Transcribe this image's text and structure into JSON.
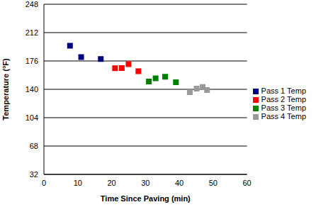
{
  "chart_data": {
    "type": "scatter",
    "x_label": "Time Since Paving (min)",
    "y_label": "Temperature (°F)",
    "xlim": [
      0,
      60
    ],
    "xticks": [
      0,
      10,
      20,
      30,
      40,
      50,
      60
    ],
    "ylim": [
      32,
      248
    ],
    "yticks": [
      32,
      68,
      104,
      140,
      176,
      212,
      248
    ],
    "grid": true,
    "legend": "right",
    "marker": "square",
    "series": [
      {
        "name": "Pass 1 Temp",
        "color": "#000080",
        "x": [
          7.7,
          11,
          16.8
        ],
        "values": [
          195.3,
          181,
          178.4
        ]
      },
      {
        "name": "Pass 2 Temp",
        "color": "#ff0000",
        "x": [
          21,
          23,
          25,
          27.9
        ],
        "values": [
          166.8,
          167,
          172,
          163
        ]
      },
      {
        "name": "Pass 3 Temp",
        "color": "#008000",
        "x": [
          31,
          33,
          35.8,
          39
        ],
        "values": [
          150,
          154,
          156,
          149
        ]
      },
      {
        "name": "Pass 4 Temp",
        "color": "#999999",
        "x": [
          43.1,
          45.1,
          46.9,
          48.2
        ],
        "values": [
          136.4,
          141,
          143,
          139
        ]
      }
    ]
  }
}
